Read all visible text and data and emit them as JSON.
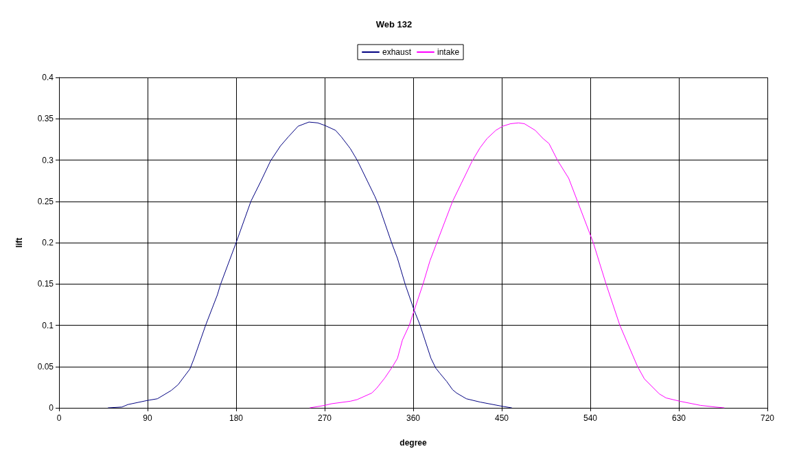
{
  "chart_data": {
    "type": "line",
    "title": "Web 132",
    "xlabel": "degree",
    "ylabel": "lift",
    "series": [
      {
        "name": "exhaust",
        "color": "#000080",
        "x": [
          50,
          64,
          70,
          90,
          100,
          114,
          121,
          133,
          137,
          149,
          161,
          164,
          180,
          195,
          205,
          215,
          225,
          233,
          243,
          254,
          263,
          270,
          281,
          287,
          296,
          303,
          312,
          321,
          325,
          338,
          344,
          352,
          361,
          367,
          378,
          383,
          387,
          394,
          400,
          404,
          414,
          428,
          450,
          460
        ],
        "values": [
          0,
          0.001,
          0.004,
          0.009,
          0.011,
          0.021,
          0.028,
          0.047,
          0.059,
          0.1,
          0.137,
          0.149,
          0.2,
          0.25,
          0.274,
          0.299,
          0.317,
          0.328,
          0.341,
          0.346,
          0.345,
          0.342,
          0.336,
          0.328,
          0.314,
          0.3,
          0.278,
          0.256,
          0.245,
          0.2,
          0.181,
          0.149,
          0.118,
          0.1,
          0.06,
          0.048,
          0.042,
          0.032,
          0.022,
          0.018,
          0.011,
          0.007,
          0.002,
          0
        ]
      },
      {
        "name": "intake",
        "color": "#ff00ff",
        "x": [
          255,
          270,
          277,
          296,
          303,
          318,
          323,
          331,
          339,
          344,
          349,
          356,
          361,
          370,
          377,
          384,
          400,
          409,
          420,
          428,
          435,
          444,
          451,
          459,
          467,
          473,
          484,
          492,
          498,
          507,
          518,
          527,
          543,
          556,
          570,
          588,
          595,
          610,
          617,
          631,
          652,
          667,
          676
        ],
        "values": [
          0,
          0.003,
          0.005,
          0.008,
          0.01,
          0.018,
          0.024,
          0.036,
          0.05,
          0.06,
          0.082,
          0.1,
          0.118,
          0.15,
          0.178,
          0.2,
          0.25,
          0.272,
          0.299,
          0.315,
          0.326,
          0.336,
          0.341,
          0.344,
          0.345,
          0.344,
          0.336,
          0.326,
          0.32,
          0.299,
          0.278,
          0.25,
          0.2,
          0.15,
          0.1,
          0.05,
          0.035,
          0.017,
          0.012,
          0.008,
          0.003,
          0.001,
          0
        ]
      }
    ],
    "xlim": [
      0,
      720
    ],
    "xticks": [
      0,
      90,
      180,
      270,
      360,
      450,
      540,
      630,
      720
    ],
    "ylim": [
      0,
      0.4
    ],
    "yticks": [
      0,
      0.05,
      0.1,
      0.15,
      0.2,
      0.25,
      0.3,
      0.35,
      0.4
    ],
    "grid": true,
    "legend": "top",
    "marker": "none",
    "line_style": "solid"
  }
}
